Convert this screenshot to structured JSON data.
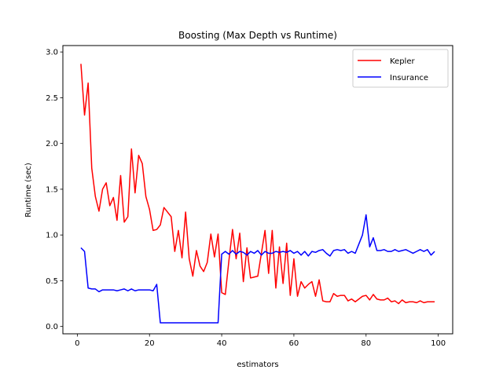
{
  "chart_data": {
    "type": "line",
    "title": "Boosting (Max Depth vs Runtime)",
    "xlabel": "estimators",
    "ylabel": "Runtime (sec)",
    "xlim": [
      -4,
      104
    ],
    "ylim": [
      -0.08,
      3.07
    ],
    "xticks": [
      0,
      20,
      40,
      60,
      80,
      100
    ],
    "yticks": [
      0.0,
      0.5,
      1.0,
      1.5,
      2.0,
      2.5,
      3.0
    ],
    "xtick_labels": [
      "0",
      "20",
      "40",
      "60",
      "80",
      "100"
    ],
    "ytick_labels": [
      "0.0",
      "0.5",
      "1.0",
      "1.5",
      "2.0",
      "2.5",
      "3.0"
    ],
    "grid": false,
    "legend_position": "upper right",
    "series": [
      {
        "name": "Kepler",
        "color": "#ff0000",
        "x": [
          1,
          2,
          3,
          4,
          5,
          6,
          7,
          8,
          9,
          10,
          11,
          12,
          13,
          14,
          15,
          16,
          17,
          18,
          19,
          20,
          21,
          22,
          23,
          24,
          25,
          26,
          27,
          28,
          29,
          30,
          31,
          32,
          33,
          34,
          35,
          36,
          37,
          38,
          39,
          40,
          41,
          42,
          43,
          44,
          45,
          46,
          47,
          48,
          49,
          50,
          51,
          52,
          53,
          54,
          55,
          56,
          57,
          58,
          59,
          60,
          61,
          62,
          63,
          64,
          65,
          66,
          67,
          68,
          69,
          70,
          71,
          72,
          73,
          74,
          75,
          76,
          77,
          78,
          79,
          80,
          81,
          82,
          83,
          84,
          85,
          86,
          87,
          88,
          89,
          90,
          91,
          92,
          93,
          94,
          95,
          96,
          97,
          98,
          99
        ],
        "y": [
          2.87,
          2.31,
          2.66,
          1.73,
          1.42,
          1.26,
          1.5,
          1.57,
          1.32,
          1.41,
          1.16,
          1.65,
          1.14,
          1.2,
          1.94,
          1.46,
          1.87,
          1.78,
          1.42,
          1.28,
          1.05,
          1.06,
          1.11,
          1.3,
          1.25,
          1.2,
          0.82,
          1.05,
          0.75,
          1.25,
          0.74,
          0.55,
          0.83,
          0.66,
          0.6,
          0.7,
          1.01,
          0.76,
          1.01,
          0.37,
          0.35,
          0.72,
          1.06,
          0.74,
          1.02,
          0.49,
          0.86,
          0.53,
          0.54,
          0.55,
          0.8,
          1.05,
          0.58,
          1.05,
          0.42,
          0.87,
          0.47,
          0.91,
          0.34,
          0.74,
          0.33,
          0.49,
          0.42,
          0.46,
          0.49,
          0.33,
          0.51,
          0.28,
          0.27,
          0.27,
          0.36,
          0.33,
          0.34,
          0.34,
          0.28,
          0.3,
          0.27,
          0.3,
          0.33,
          0.34,
          0.29,
          0.35,
          0.3,
          0.29,
          0.29,
          0.31,
          0.27,
          0.28,
          0.25,
          0.29,
          0.26,
          0.27,
          0.27,
          0.26,
          0.28,
          0.26,
          0.27,
          0.27,
          0.27
        ]
      },
      {
        "name": "Insurance",
        "color": "#0000ff",
        "x": [
          1,
          2,
          3,
          4,
          5,
          6,
          7,
          8,
          9,
          10,
          11,
          12,
          13,
          14,
          15,
          16,
          17,
          18,
          19,
          20,
          21,
          22,
          23,
          24,
          25,
          26,
          27,
          28,
          29,
          30,
          31,
          32,
          33,
          34,
          35,
          36,
          37,
          38,
          39,
          40,
          41,
          42,
          43,
          44,
          45,
          46,
          47,
          48,
          49,
          50,
          51,
          52,
          53,
          54,
          55,
          56,
          57,
          58,
          59,
          60,
          61,
          62,
          63,
          64,
          65,
          66,
          67,
          68,
          69,
          70,
          71,
          72,
          73,
          74,
          75,
          76,
          77,
          78,
          79,
          80,
          81,
          82,
          83,
          84,
          85,
          86,
          87,
          88,
          89,
          90,
          91,
          92,
          93,
          94,
          95,
          96,
          97,
          98,
          99
        ],
        "y": [
          0.86,
          0.82,
          0.42,
          0.41,
          0.41,
          0.38,
          0.4,
          0.4,
          0.4,
          0.4,
          0.39,
          0.4,
          0.41,
          0.39,
          0.41,
          0.39,
          0.4,
          0.4,
          0.4,
          0.4,
          0.39,
          0.46,
          0.04,
          0.04,
          0.04,
          0.04,
          0.04,
          0.04,
          0.04,
          0.04,
          0.04,
          0.04,
          0.04,
          0.04,
          0.04,
          0.04,
          0.04,
          0.04,
          0.04,
          0.79,
          0.82,
          0.79,
          0.83,
          0.79,
          0.82,
          0.81,
          0.78,
          0.82,
          0.8,
          0.83,
          0.78,
          0.82,
          0.8,
          0.8,
          0.82,
          0.81,
          0.82,
          0.81,
          0.83,
          0.8,
          0.82,
          0.78,
          0.82,
          0.77,
          0.82,
          0.81,
          0.83,
          0.84,
          0.8,
          0.77,
          0.83,
          0.84,
          0.83,
          0.84,
          0.8,
          0.82,
          0.8,
          0.9,
          1.0,
          1.22,
          0.87,
          0.97,
          0.83,
          0.83,
          0.84,
          0.82,
          0.82,
          0.84,
          0.82,
          0.83,
          0.84,
          0.82,
          0.8,
          0.82,
          0.84,
          0.82,
          0.84,
          0.78,
          0.82
        ]
      }
    ]
  }
}
